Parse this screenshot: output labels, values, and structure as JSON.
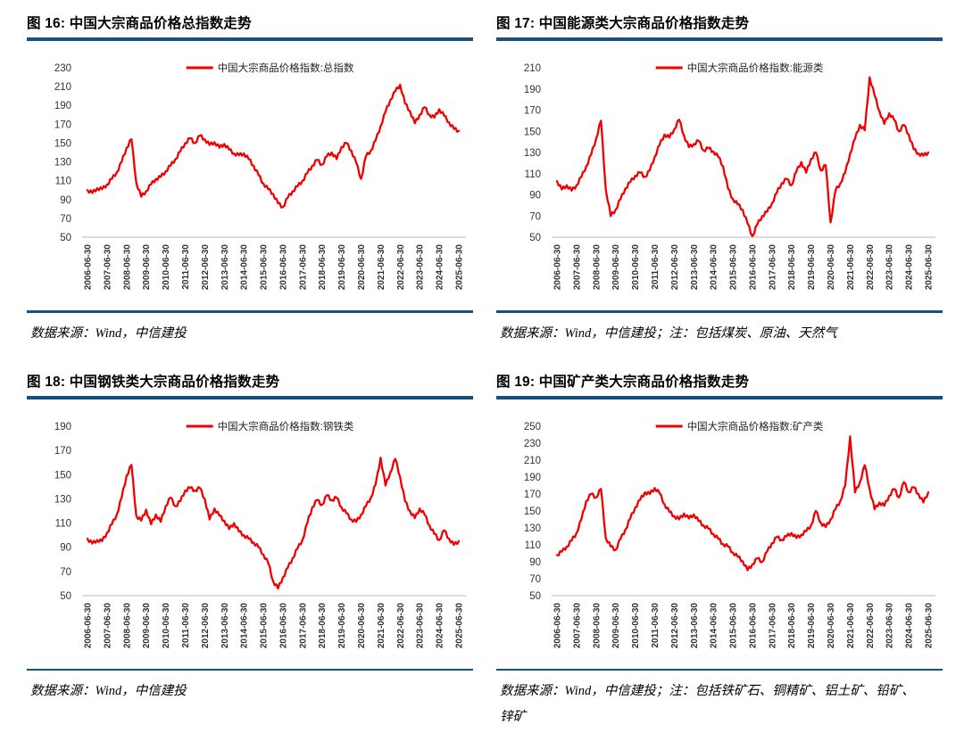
{
  "page": {
    "accent_navy": "#1B4E79",
    "line_color": "#F00000",
    "axis_line_color": "#c8c8c8",
    "tick_text_color": "#333333"
  },
  "chart_data": {
    "x_tick_labels": [
      "2006-06-30",
      "2007-06-30",
      "2008-06-30",
      "2009-06-30",
      "2010-06-30",
      "2011-06-30",
      "2012-06-30",
      "2013-06-30",
      "2014-06-30",
      "2015-06-30",
      "2016-06-30",
      "2017-06-30",
      "2018-06-30",
      "2019-06-30",
      "2020-06-30",
      "2021-06-30",
      "2022-06-30",
      "2023-06-30",
      "2024-06-30",
      "2025-06-30"
    ],
    "x_note": "values are quarterly from 2006-06-30 to 2025-06-30; yearly tick at every 4th point",
    "charts": [
      {
        "type": "line",
        "title": "图 16: 中国大宗商品价格总指数走势",
        "legend": "中国大宗商品价格指数:总指数",
        "source": "数据来源：Wind，中信建投",
        "ylim": [
          50,
          230
        ],
        "ystep": 20,
        "grid": false,
        "legend_position": "top-center",
        "values": [
          100,
          97,
          102,
          101,
          106,
          112,
          119,
          130,
          145,
          154,
          108,
          93,
          99,
          106,
          112,
          114,
          120,
          126,
          133,
          141,
          150,
          155,
          150,
          158,
          154,
          148,
          151,
          145,
          149,
          143,
          139,
          137,
          139,
          133,
          126,
          116,
          107,
          101,
          96,
          86,
          82,
          92,
          99,
          104,
          110,
          118,
          126,
          132,
          127,
          136,
          140,
          133,
          146,
          150,
          142,
          129,
          112,
          136,
          142,
          153,
          168,
          183,
          196,
          205,
          212,
          192,
          184,
          171,
          180,
          188,
          180,
          177,
          186,
          179,
          172,
          165,
          163
        ]
      },
      {
        "type": "line",
        "title": "图 17: 中国能源类大宗商品价格指数走势",
        "legend": "中国大宗商品价格指数:能源类",
        "source": "数据来源：Wind，中信建投；注：包括煤炭、原油、天然气",
        "ylim": [
          50,
          210
        ],
        "ystep": 20,
        "grid": false,
        "legend_position": "top-center",
        "values": [
          103,
          95,
          99,
          94,
          99,
          107,
          117,
          128,
          143,
          160,
          95,
          70,
          76,
          86,
          96,
          102,
          108,
          111,
          107,
          113,
          126,
          137,
          147,
          144,
          152,
          161,
          146,
          135,
          138,
          141,
          132,
          134,
          131,
          126,
          117,
          96,
          86,
          81,
          76,
          63,
          51,
          62,
          70,
          74,
          82,
          92,
          101,
          105,
          99,
          112,
          121,
          111,
          124,
          130,
          113,
          118,
          64,
          94,
          101,
          111,
          129,
          143,
          156,
          151,
          201,
          184,
          169,
          157,
          167,
          161,
          150,
          156,
          147,
          133,
          129,
          127,
          130
        ]
      },
      {
        "type": "line",
        "title": "图 18: 中国钢铁类大宗商品价格指数走势",
        "legend": "中国大宗商品价格指数:钢铁类",
        "source": "数据来源：Wind，中信建投",
        "ylim": [
          50,
          190
        ],
        "ystep": 20,
        "grid": false,
        "legend_position": "top-center",
        "values": [
          97,
          93,
          96,
          95,
          102,
          109,
          117,
          131,
          149,
          158,
          116,
          112,
          121,
          109,
          117,
          111,
          124,
          131,
          124,
          128,
          137,
          139,
          137,
          139,
          130,
          113,
          122,
          116,
          112,
          105,
          110,
          103,
          100,
          97,
          94,
          90,
          84,
          77,
          62,
          56,
          65,
          73,
          81,
          89,
          96,
          110,
          123,
          129,
          125,
          133,
          129,
          131,
          123,
          118,
          113,
          111,
          117,
          124,
          131,
          142,
          164,
          141,
          152,
          163,
          148,
          128,
          120,
          114,
          122,
          117,
          108,
          101,
          96,
          104,
          97,
          92,
          95
        ]
      },
      {
        "type": "line",
        "title": "图 19: 中国矿产类大宗商品价格指数走势",
        "legend": "中国大宗商品价格指数:矿产类",
        "source": "数据来源：Wind，中信建投；注：包括铁矿石、铜精矿、铝土矿、铅矿、锌矿",
        "ylim": [
          50,
          250
        ],
        "ystep": 20,
        "grid": false,
        "legend_position": "top-center",
        "values": [
          98,
          102,
          108,
          115,
          124,
          140,
          162,
          170,
          166,
          176,
          118,
          108,
          104,
          117,
          128,
          141,
          154,
          163,
          172,
          170,
          177,
          171,
          158,
          149,
          144,
          140,
          147,
          141,
          146,
          138,
          133,
          129,
          123,
          117,
          111,
          108,
          101,
          96,
          91,
          80,
          87,
          94,
          90,
          102,
          112,
          119,
          116,
          120,
          124,
          118,
          122,
          126,
          133,
          150,
          136,
          131,
          140,
          152,
          162,
          180,
          238,
          172,
          184,
          204,
          176,
          152,
          160,
          156,
          168,
          176,
          166,
          184,
          172,
          178,
          170,
          160,
          172
        ]
      }
    ]
  }
}
